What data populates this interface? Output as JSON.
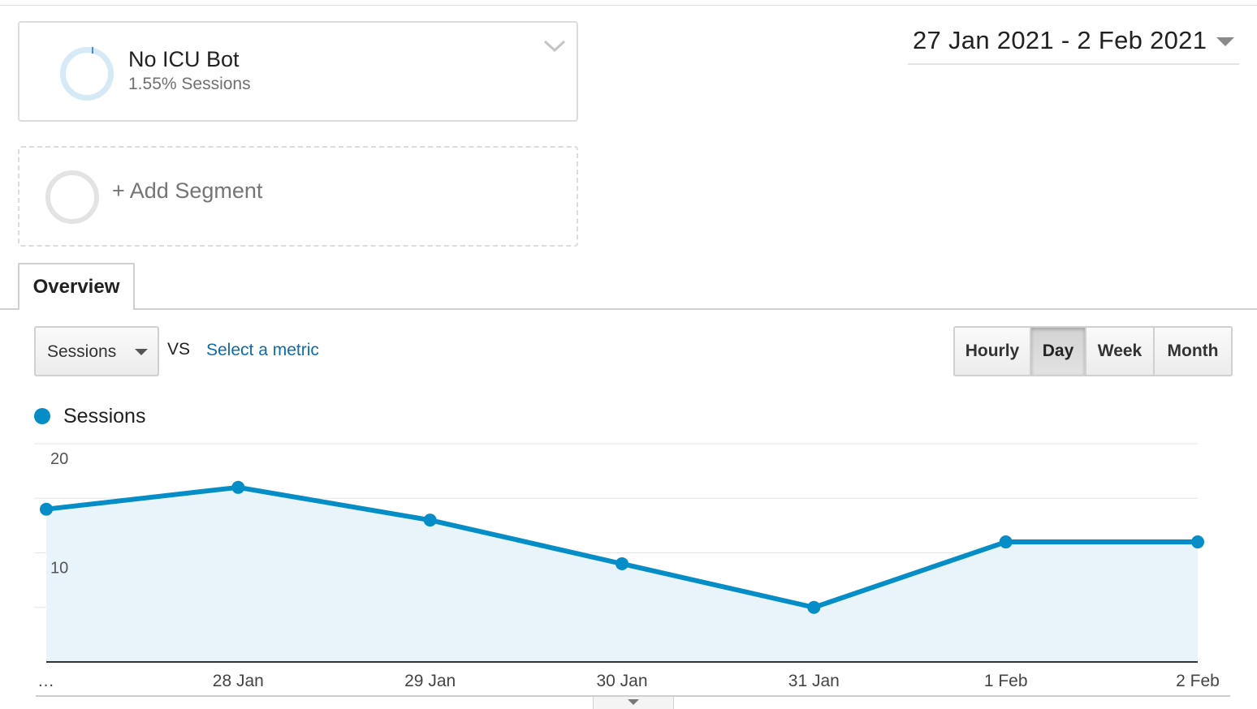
{
  "segment": {
    "name": "No ICU Bot",
    "subtitle": "1.55% Sessions",
    "add_label": "+ Add Segment"
  },
  "date_range": {
    "label": "27 Jan 2021 - 2 Feb 2021"
  },
  "tabs": [
    {
      "label": "Overview",
      "active": true
    }
  ],
  "metric": {
    "selected": "Sessions",
    "vs_label": "VS",
    "secondary_placeholder": "Select a metric"
  },
  "granularity": {
    "options": [
      "Hourly",
      "Day",
      "Week",
      "Month"
    ],
    "selected": "Day"
  },
  "legend": {
    "series_label": "Sessions"
  },
  "colors": {
    "series": "#058dc7",
    "area": "#e8f3fa",
    "link": "#0b6bb3"
  },
  "chart_data": {
    "type": "area",
    "x": [
      "27 Jan",
      "28 Jan",
      "29 Jan",
      "30 Jan",
      "31 Jan",
      "1 Feb",
      "2 Feb"
    ],
    "x_tick_labels": [
      "…",
      "28 Jan",
      "29 Jan",
      "30 Jan",
      "31 Jan",
      "1 Feb",
      "2 Feb"
    ],
    "series": [
      {
        "name": "Sessions",
        "values": [
          14,
          16,
          13,
          9,
          5,
          11,
          11
        ]
      }
    ],
    "y_ticks": [
      10,
      20
    ],
    "ylim": [
      0,
      20
    ],
    "grid": true,
    "legend_position": "top-left"
  }
}
